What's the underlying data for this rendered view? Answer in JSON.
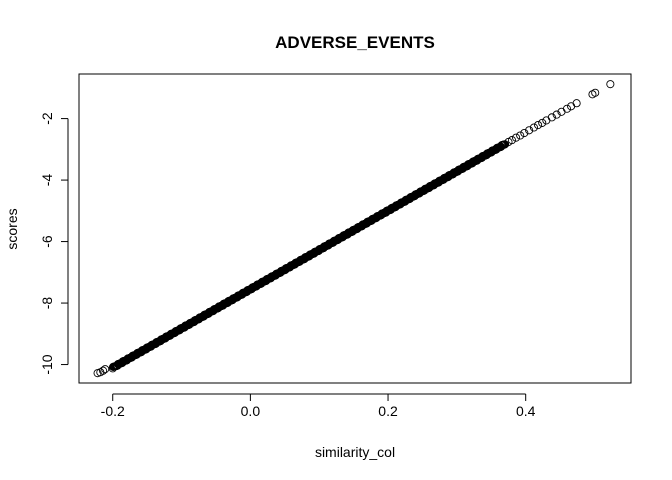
{
  "chart_data": {
    "type": "scatter",
    "title": "ADVERSE_EVENTS",
    "xlabel": "similarity_col",
    "ylabel": "scores",
    "xlim": [
      -0.249,
      0.553
    ],
    "ylim": [
      -10.6,
      -0.55
    ],
    "x_ticks": [
      -0.2,
      0.0,
      0.2,
      0.4
    ],
    "x_tick_labels": [
      "-0.2",
      "0.0",
      "0.2",
      "0.4"
    ],
    "y_ticks": [
      -2,
      -4,
      -6,
      -8,
      -10
    ],
    "y_tick_labels": [
      "-2",
      "-4",
      "-6",
      "-8",
      "-10"
    ],
    "grid": false,
    "marker": "open-circle",
    "marker_color": "#000000",
    "relation": {
      "slope": 12.77,
      "intercept": -7.55
    },
    "series": [
      {
        "dense_x_range": [
          -0.2,
          0.37
        ],
        "points": [
          {
            "x": -0.222,
            "y": -10.28
          },
          {
            "x": -0.218,
            "y": -10.25
          },
          {
            "x": -0.214,
            "y": -10.2
          },
          {
            "x": -0.211,
            "y": -10.15
          },
          {
            "x": 0.375,
            "y": -2.76
          },
          {
            "x": 0.38,
            "y": -2.7
          },
          {
            "x": 0.386,
            "y": -2.62
          },
          {
            "x": 0.392,
            "y": -2.55
          },
          {
            "x": 0.398,
            "y": -2.47
          },
          {
            "x": 0.405,
            "y": -2.38
          },
          {
            "x": 0.412,
            "y": -2.29
          },
          {
            "x": 0.418,
            "y": -2.21
          },
          {
            "x": 0.424,
            "y": -2.14
          },
          {
            "x": 0.43,
            "y": -2.06
          },
          {
            "x": 0.438,
            "y": -1.96
          },
          {
            "x": 0.445,
            "y": -1.87
          },
          {
            "x": 0.452,
            "y": -1.78
          },
          {
            "x": 0.46,
            "y": -1.68
          },
          {
            "x": 0.466,
            "y": -1.6
          },
          {
            "x": 0.474,
            "y": -1.5
          },
          {
            "x": 0.497,
            "y": -1.21
          },
          {
            "x": 0.501,
            "y": -1.16
          },
          {
            "x": 0.523,
            "y": -0.88
          }
        ]
      }
    ]
  }
}
